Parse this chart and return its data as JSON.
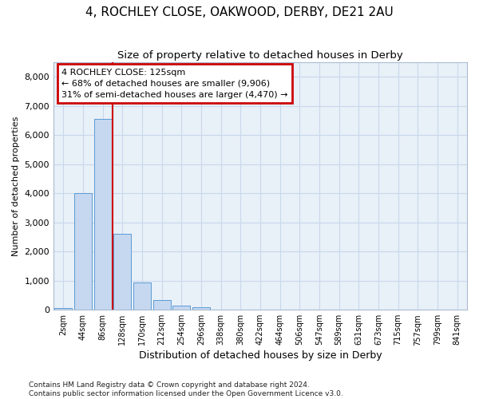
{
  "title_line1": "4, ROCHLEY CLOSE, OAKWOOD, DERBY, DE21 2AU",
  "title_line2": "Size of property relative to detached houses in Derby",
  "xlabel": "Distribution of detached houses by size in Derby",
  "ylabel": "Number of detached properties",
  "footnote": "Contains HM Land Registry data © Crown copyright and database right 2024.\nContains public sector information licensed under the Open Government Licence v3.0.",
  "bar_labels": [
    "2sqm",
    "44sqm",
    "86sqm",
    "128sqm",
    "170sqm",
    "212sqm",
    "254sqm",
    "296sqm",
    "338sqm",
    "380sqm",
    "422sqm",
    "464sqm",
    "506sqm",
    "547sqm",
    "589sqm",
    "631sqm",
    "673sqm",
    "715sqm",
    "757sqm",
    "799sqm",
    "841sqm"
  ],
  "bar_values": [
    50,
    4000,
    6550,
    2600,
    950,
    330,
    130,
    100,
    0,
    0,
    0,
    0,
    0,
    0,
    0,
    0,
    0,
    0,
    0,
    0,
    0
  ],
  "bar_color": "#c5d8f0",
  "bar_edge_color": "#5b9bd5",
  "annotation_box_text": "4 ROCHLEY CLOSE: 125sqm\n← 68% of detached houses are smaller (9,906)\n31% of semi-detached houses are larger (4,470) →",
  "annotation_box_color": "#cc0000",
  "vline_x_index": 2.5,
  "vline_color": "#cc0000",
  "ylim": [
    0,
    8500
  ],
  "yticks": [
    0,
    1000,
    2000,
    3000,
    4000,
    5000,
    6000,
    7000,
    8000
  ],
  "grid_color": "#c8d8ec",
  "background_color": "#e8f0f8",
  "title1_fontsize": 11,
  "title2_fontsize": 9.5
}
